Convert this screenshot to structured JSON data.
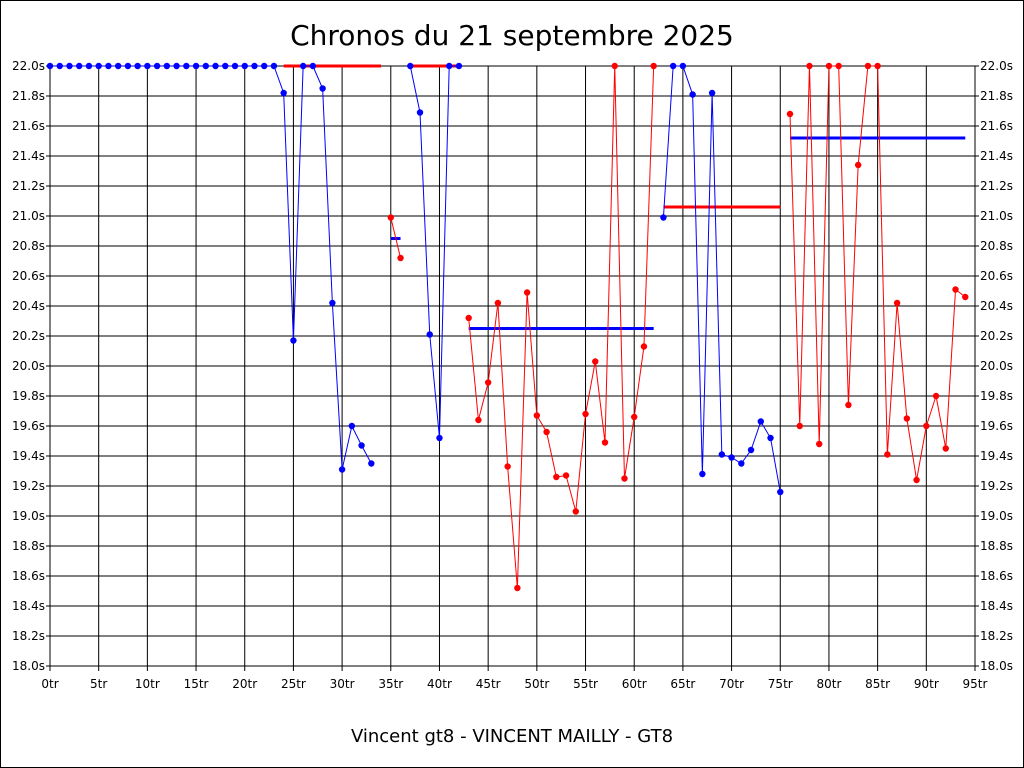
{
  "chart_data": {
    "type": "line",
    "title": "Chronos du 21 septembre 2025",
    "footer": "Vincent gt8 - VINCENT MAILLY - GT8",
    "xlim": [
      0,
      95
    ],
    "ylim": [
      18.0,
      22.0
    ],
    "x_ticks": [
      "0tr",
      "5tr",
      "10tr",
      "15tr",
      "20tr",
      "25tr",
      "30tr",
      "35tr",
      "40tr",
      "45tr",
      "50tr",
      "55tr",
      "60tr",
      "65tr",
      "70tr",
      "75tr",
      "80tr",
      "85tr",
      "90tr",
      "95tr"
    ],
    "y_ticks": [
      "18.0s",
      "18.2s",
      "18.4s",
      "18.6s",
      "18.8s",
      "19.0s",
      "19.2s",
      "19.4s",
      "19.6s",
      "19.8s",
      "20.0s",
      "20.2s",
      "20.4s",
      "20.6s",
      "20.8s",
      "21.0s",
      "21.2s",
      "21.4s",
      "21.6s",
      "21.8s",
      "22.0s"
    ],
    "grid": true,
    "colors": {
      "blue": "#0000ff",
      "red": "#ff0000"
    },
    "series": [
      {
        "color": "blue",
        "points": [
          [
            0,
            22.0
          ],
          [
            1,
            22.0
          ],
          [
            2,
            22.0
          ],
          [
            3,
            22.0
          ],
          [
            4,
            22.0
          ],
          [
            5,
            22.0
          ],
          [
            6,
            22.0
          ],
          [
            7,
            22.0
          ],
          [
            8,
            22.0
          ],
          [
            9,
            22.0
          ],
          [
            10,
            22.0
          ],
          [
            11,
            22.0
          ],
          [
            12,
            22.0
          ],
          [
            13,
            22.0
          ],
          [
            14,
            22.0
          ],
          [
            15,
            22.0
          ],
          [
            16,
            22.0
          ],
          [
            17,
            22.0
          ],
          [
            18,
            22.0
          ],
          [
            19,
            22.0
          ],
          [
            20,
            22.0
          ],
          [
            21,
            22.0
          ],
          [
            22,
            22.0
          ],
          [
            23,
            22.0
          ],
          [
            24,
            21.82
          ],
          [
            25,
            20.17
          ],
          [
            26,
            22.0
          ],
          [
            27,
            22.0
          ],
          [
            28,
            21.85
          ],
          [
            29,
            20.42
          ],
          [
            30,
            19.31
          ],
          [
            31,
            19.6
          ],
          [
            32,
            19.47
          ],
          [
            33,
            19.35
          ]
        ]
      },
      {
        "color": "red",
        "points": [
          [
            35,
            20.99
          ],
          [
            36,
            20.72
          ]
        ]
      },
      {
        "color": "blue",
        "points": [
          [
            37,
            22.0
          ],
          [
            38,
            21.69
          ],
          [
            39,
            20.21
          ],
          [
            40,
            19.52
          ],
          [
            41,
            22.0
          ],
          [
            42,
            22.0
          ]
        ]
      },
      {
        "color": "red",
        "points": [
          [
            43,
            20.32
          ],
          [
            44,
            19.64
          ],
          [
            45,
            19.89
          ],
          [
            46,
            20.42
          ],
          [
            47,
            19.33
          ],
          [
            48,
            18.52
          ],
          [
            49,
            20.49
          ],
          [
            50,
            19.67
          ],
          [
            51,
            19.56
          ],
          [
            52,
            19.26
          ],
          [
            53,
            19.27
          ],
          [
            54,
            19.03
          ],
          [
            55,
            19.68
          ],
          [
            56,
            20.03
          ],
          [
            57,
            19.49
          ],
          [
            58,
            22.0
          ],
          [
            59,
            19.25
          ],
          [
            60,
            19.66
          ],
          [
            61,
            20.13
          ],
          [
            62,
            22.0
          ]
        ]
      },
      {
        "color": "blue",
        "points": [
          [
            63,
            20.99
          ],
          [
            64,
            22.0
          ],
          [
            65,
            22.0
          ],
          [
            66,
            21.81
          ],
          [
            67,
            19.28
          ],
          [
            68,
            21.82
          ],
          [
            69,
            19.41
          ],
          [
            70,
            19.39
          ],
          [
            71,
            19.35
          ],
          [
            72,
            19.44
          ],
          [
            73,
            19.63
          ],
          [
            74,
            19.52
          ],
          [
            75,
            19.16
          ]
        ]
      },
      {
        "color": "red",
        "points": [
          [
            76,
            21.68
          ],
          [
            77,
            19.6
          ],
          [
            78,
            22.0
          ],
          [
            79,
            19.48
          ],
          [
            80,
            22.0
          ],
          [
            81,
            22.0
          ],
          [
            82,
            19.74
          ],
          [
            83,
            21.34
          ],
          [
            84,
            22.0
          ],
          [
            85,
            22.0
          ],
          [
            86,
            19.41
          ],
          [
            87,
            20.42
          ],
          [
            88,
            19.65
          ],
          [
            89,
            19.24
          ],
          [
            90,
            19.6
          ],
          [
            91,
            19.8
          ],
          [
            92,
            19.45
          ],
          [
            93,
            20.51
          ],
          [
            94,
            20.46
          ]
        ]
      }
    ],
    "average_lines": [
      {
        "color": "red",
        "x_start": 24,
        "x_end": 34,
        "value": 22.0
      },
      {
        "color": "blue",
        "x_start": 35,
        "x_end": 36,
        "value": 20.85
      },
      {
        "color": "red",
        "x_start": 37,
        "x_end": 42,
        "value": 22.0
      },
      {
        "color": "blue",
        "x_start": 43,
        "x_end": 62,
        "value": 20.25
      },
      {
        "color": "red",
        "x_start": 63,
        "x_end": 75,
        "value": 21.06
      },
      {
        "color": "blue",
        "x_start": 76,
        "x_end": 94,
        "value": 21.52
      }
    ]
  }
}
